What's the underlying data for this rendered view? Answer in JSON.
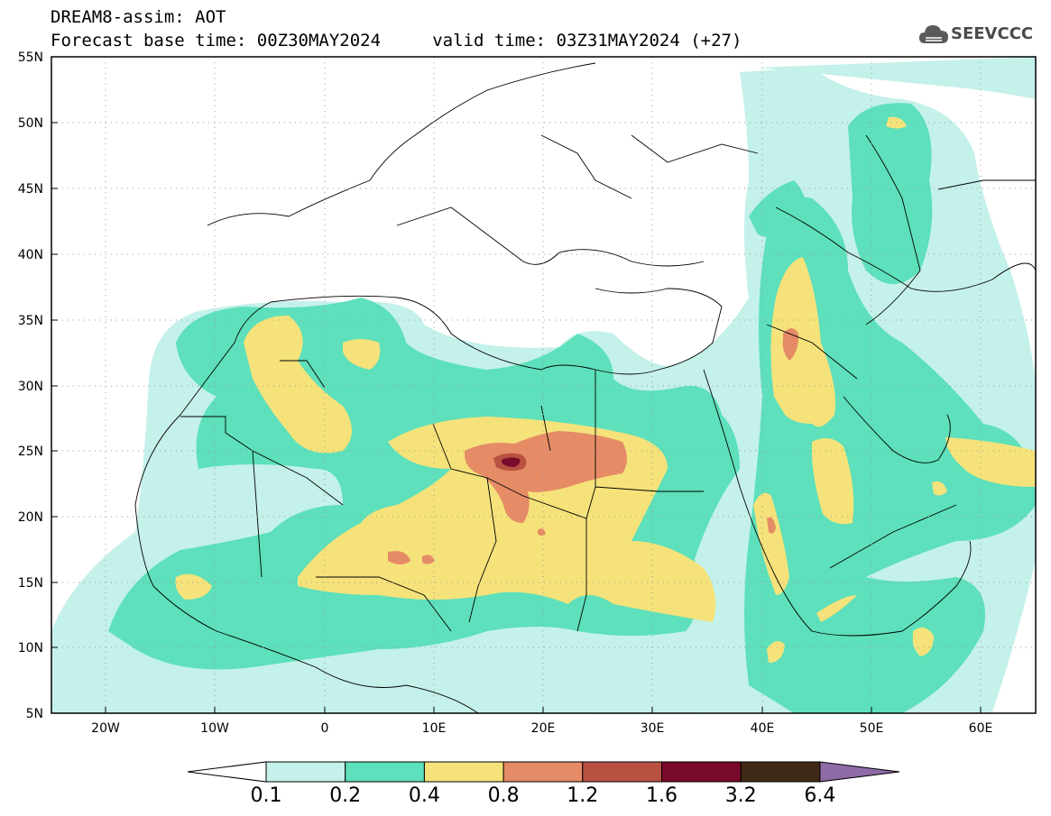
{
  "header": {
    "title_line1": "DREAM8-assim: AOT",
    "title_line2": "Forecast base time: 00Z30MAY2024     valid time: 03Z31MAY2024 (+27)"
  },
  "logo": {
    "text": "SEEVCCC",
    "icon": "cloud-icon"
  },
  "map": {
    "lat_range": [
      5,
      55
    ],
    "lon_range": [
      -25,
      65
    ],
    "lat_labels": [
      "55N",
      "50N",
      "45N",
      "40N",
      "35N",
      "30N",
      "25N",
      "20N",
      "15N",
      "10N",
      "5N"
    ],
    "lon_labels": [
      "20W",
      "10W",
      "0",
      "10E",
      "20E",
      "30E",
      "40E",
      "50E",
      "60E"
    ]
  },
  "colorbar": {
    "labels": [
      "0.1",
      "0.2",
      "0.4",
      "0.8",
      "1.2",
      "1.6",
      "3.2",
      "6.4"
    ],
    "colors": [
      "#ffffff",
      "#c4f1ea",
      "#5de0bb",
      "#f5e27a",
      "#e58b66",
      "#b85142",
      "#7a0a2c",
      "#3f2a17",
      "#8e6aa6"
    ]
  }
}
